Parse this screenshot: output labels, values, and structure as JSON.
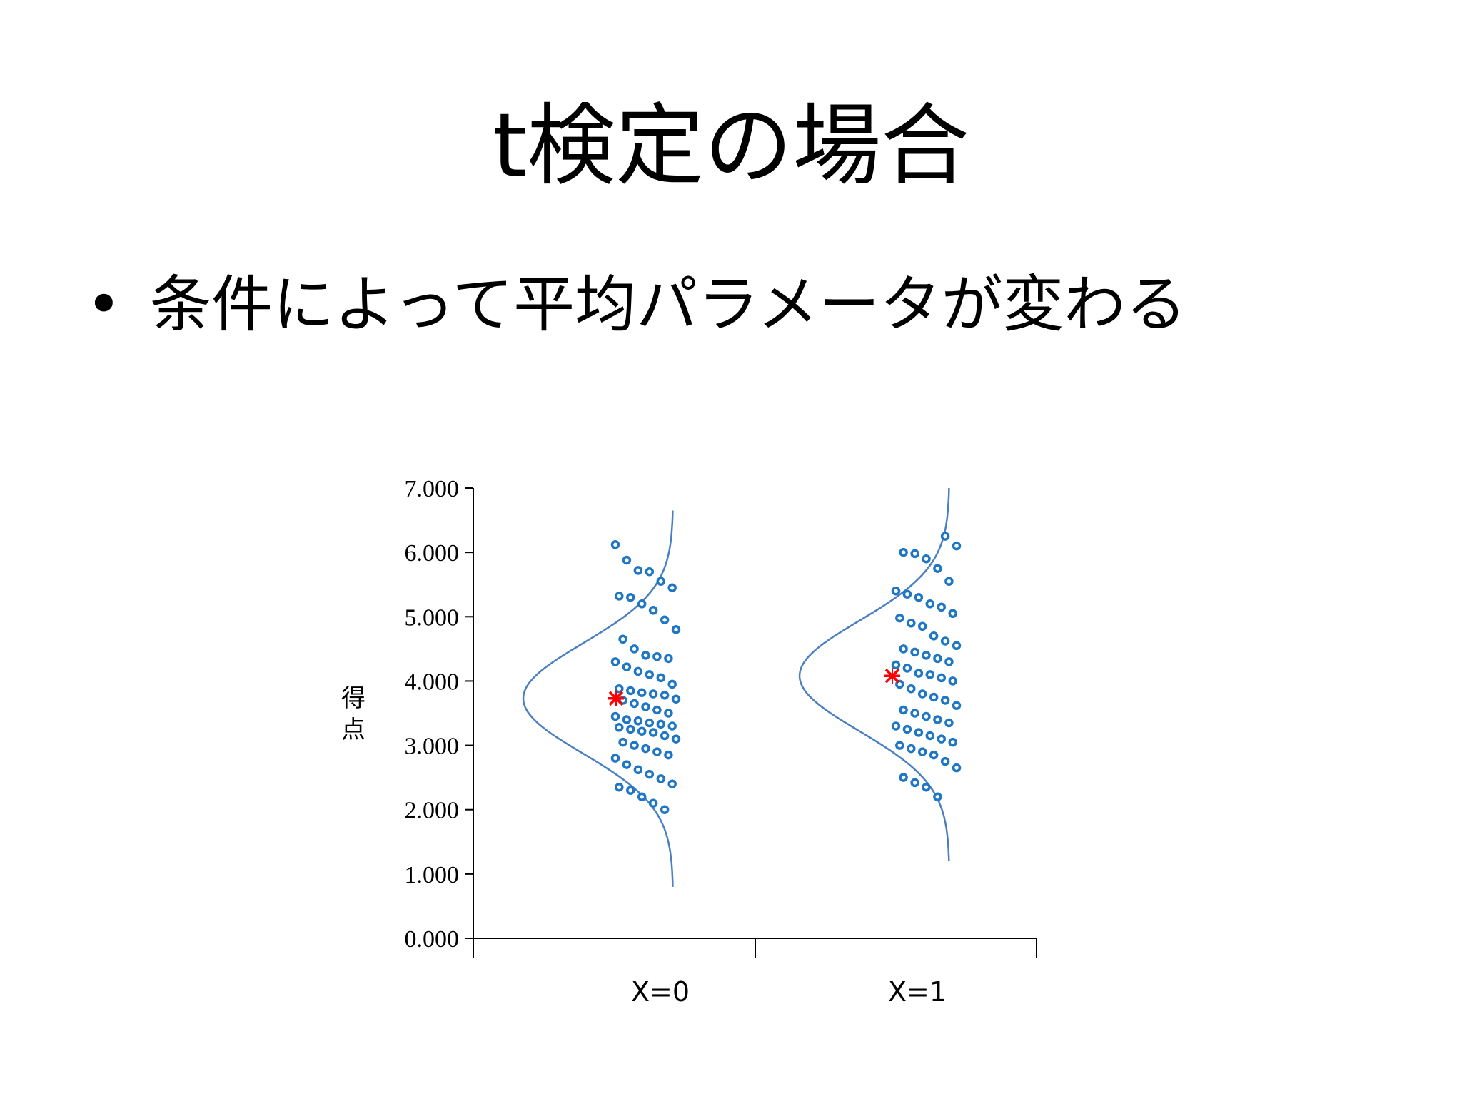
{
  "slide": {
    "title": "t検定の場合",
    "bullet_marker": "•",
    "bullet_text": "条件によって平均パラメータが変わる"
  },
  "colors": {
    "point": "#1f77c4",
    "curve": "#4a7fc1",
    "mean_marker": "#ff0000",
    "axis": "#000000"
  },
  "chart_data": {
    "type": "scatter",
    "ylabel": "得点",
    "ylim": [
      0,
      7
    ],
    "yticks": [
      "0.000",
      "1.000",
      "2.000",
      "3.000",
      "4.000",
      "5.000",
      "6.000",
      "7.000"
    ],
    "categories": [
      "X=0",
      "X=1"
    ],
    "groups": [
      {
        "category": "X=0",
        "mean": 3.73,
        "sd": 0.85,
        "curve_y_range": [
          0.8,
          6.65
        ],
        "points": [
          6.12,
          5.88,
          5.72,
          5.7,
          5.55,
          5.45,
          5.32,
          5.3,
          5.2,
          5.1,
          4.95,
          4.8,
          4.65,
          4.5,
          4.4,
          4.38,
          4.35,
          4.3,
          4.22,
          4.15,
          4.1,
          4.05,
          3.95,
          3.88,
          3.85,
          3.82,
          3.8,
          3.78,
          3.72,
          3.7,
          3.65,
          3.6,
          3.55,
          3.5,
          3.45,
          3.4,
          3.38,
          3.35,
          3.33,
          3.3,
          3.28,
          3.25,
          3.22,
          3.2,
          3.15,
          3.1,
          3.05,
          3.0,
          2.95,
          2.9,
          2.85,
          2.8,
          2.7,
          2.62,
          2.55,
          2.48,
          2.4,
          2.35,
          2.3,
          2.2,
          2.1,
          2.0
        ]
      },
      {
        "category": "X=1",
        "mean": 4.08,
        "sd": 0.85,
        "curve_y_range": [
          1.2,
          7.0
        ],
        "points": [
          6.25,
          6.1,
          6.0,
          5.98,
          5.9,
          5.75,
          5.55,
          5.4,
          5.35,
          5.3,
          5.2,
          5.15,
          5.05,
          4.98,
          4.9,
          4.85,
          4.7,
          4.62,
          4.55,
          4.5,
          4.45,
          4.4,
          4.35,
          4.3,
          4.25,
          4.2,
          4.12,
          4.1,
          4.05,
          4.0,
          3.95,
          3.88,
          3.8,
          3.75,
          3.7,
          3.62,
          3.55,
          3.5,
          3.45,
          3.4,
          3.35,
          3.3,
          3.25,
          3.2,
          3.15,
          3.1,
          3.05,
          3.0,
          2.95,
          2.9,
          2.85,
          2.75,
          2.65,
          2.5,
          2.42,
          2.35,
          2.2
        ]
      }
    ]
  }
}
